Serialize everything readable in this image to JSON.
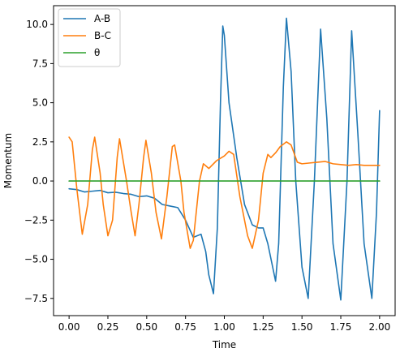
{
  "chart_data": {
    "type": "line",
    "title": "",
    "xlabel": "Time",
    "ylabel": "Momentum",
    "xlim": [
      -0.1,
      2.1
    ],
    "ylim": [
      -8.6,
      11.2
    ],
    "xticks": [
      0.0,
      0.25,
      0.5,
      0.75,
      1.0,
      1.25,
      1.5,
      1.75,
      2.0
    ],
    "xtick_labels": [
      "0.00",
      "0.25",
      "0.50",
      "0.75",
      "1.00",
      "1.25",
      "1.50",
      "1.75",
      "2.00"
    ],
    "yticks": [
      -7.5,
      -5.0,
      -2.5,
      0.0,
      2.5,
      5.0,
      7.5,
      10.0
    ],
    "ytick_labels": [
      "−7.5",
      "−5.0",
      "−2.5",
      "0.0",
      "2.5",
      "5.0",
      "7.5",
      "10.0"
    ],
    "grid": false,
    "legend_position": "top-left",
    "series": [
      {
        "name": "A-B",
        "color": "#1f77b4",
        "points": [
          [
            0.0,
            -0.5
          ],
          [
            0.05,
            -0.55
          ],
          [
            0.1,
            -0.7
          ],
          [
            0.15,
            -0.65
          ],
          [
            0.2,
            -0.6
          ],
          [
            0.25,
            -0.75
          ],
          [
            0.3,
            -0.72
          ],
          [
            0.35,
            -0.8
          ],
          [
            0.4,
            -0.85
          ],
          [
            0.45,
            -1.0
          ],
          [
            0.5,
            -0.95
          ],
          [
            0.55,
            -1.1
          ],
          [
            0.6,
            -1.5
          ],
          [
            0.65,
            -1.6
          ],
          [
            0.7,
            -1.7
          ],
          [
            0.75,
            -2.5
          ],
          [
            0.8,
            -3.6
          ],
          [
            0.85,
            -3.4
          ],
          [
            0.88,
            -4.5
          ],
          [
            0.9,
            -6.0
          ],
          [
            0.93,
            -7.2
          ],
          [
            0.955,
            -3.0
          ],
          [
            0.975,
            5.0
          ],
          [
            0.99,
            9.9
          ],
          [
            1.0,
            9.3
          ],
          [
            1.03,
            5.0
          ],
          [
            1.08,
            1.5
          ],
          [
            1.13,
            -1.5
          ],
          [
            1.18,
            -2.8
          ],
          [
            1.22,
            -3.0
          ],
          [
            1.25,
            -3.0
          ],
          [
            1.28,
            -4.0
          ],
          [
            1.33,
            -6.4
          ],
          [
            1.35,
            -4.0
          ],
          [
            1.38,
            6.0
          ],
          [
            1.4,
            10.4
          ],
          [
            1.43,
            7.0
          ],
          [
            1.46,
            0.0
          ],
          [
            1.5,
            -5.5
          ],
          [
            1.54,
            -7.5
          ],
          [
            1.58,
            0.0
          ],
          [
            1.62,
            9.7
          ],
          [
            1.66,
            4.0
          ],
          [
            1.7,
            -4.0
          ],
          [
            1.75,
            -7.6
          ],
          [
            1.79,
            0.0
          ],
          [
            1.82,
            9.6
          ],
          [
            1.86,
            3.0
          ],
          [
            1.9,
            -4.0
          ],
          [
            1.95,
            -7.5
          ],
          [
            1.98,
            -2.0
          ],
          [
            2.0,
            4.5
          ]
        ]
      },
      {
        "name": "B-C",
        "color": "#ff7f0e",
        "points": [
          [
            0.0,
            2.8
          ],
          [
            0.02,
            2.5
          ],
          [
            0.05,
            -0.5
          ],
          [
            0.085,
            -3.4
          ],
          [
            0.12,
            -1.5
          ],
          [
            0.15,
            2.0
          ],
          [
            0.165,
            2.8
          ],
          [
            0.2,
            0.5
          ],
          [
            0.22,
            -1.5
          ],
          [
            0.25,
            -3.5
          ],
          [
            0.28,
            -2.5
          ],
          [
            0.31,
            1.5
          ],
          [
            0.325,
            2.7
          ],
          [
            0.37,
            0.0
          ],
          [
            0.4,
            -2.0
          ],
          [
            0.425,
            -3.5
          ],
          [
            0.45,
            -1.5
          ],
          [
            0.48,
            1.5
          ],
          [
            0.495,
            2.6
          ],
          [
            0.53,
            0.5
          ],
          [
            0.56,
            -2.0
          ],
          [
            0.595,
            -3.7
          ],
          [
            0.63,
            -1.0
          ],
          [
            0.665,
            2.2
          ],
          [
            0.68,
            2.3
          ],
          [
            0.72,
            0.0
          ],
          [
            0.74,
            -2.0
          ],
          [
            0.78,
            -4.3
          ],
          [
            0.8,
            -3.8
          ],
          [
            0.84,
            0.0
          ],
          [
            0.865,
            1.1
          ],
          [
            0.9,
            0.8
          ],
          [
            0.95,
            1.3
          ],
          [
            1.0,
            1.6
          ],
          [
            1.03,
            1.9
          ],
          [
            1.06,
            1.7
          ],
          [
            1.1,
            -1.0
          ],
          [
            1.15,
            -3.5
          ],
          [
            1.18,
            -4.3
          ],
          [
            1.22,
            -2.5
          ],
          [
            1.25,
            0.5
          ],
          [
            1.28,
            1.7
          ],
          [
            1.3,
            1.5
          ],
          [
            1.33,
            1.8
          ],
          [
            1.36,
            2.2
          ],
          [
            1.4,
            2.5
          ],
          [
            1.43,
            2.3
          ],
          [
            1.47,
            1.2
          ],
          [
            1.5,
            1.1
          ],
          [
            1.55,
            1.15
          ],
          [
            1.6,
            1.2
          ],
          [
            1.65,
            1.25
          ],
          [
            1.7,
            1.1
          ],
          [
            1.75,
            1.05
          ],
          [
            1.8,
            1.0
          ],
          [
            1.85,
            1.05
          ],
          [
            1.9,
            1.0
          ],
          [
            1.95,
            1.0
          ],
          [
            2.0,
            1.0
          ]
        ]
      },
      {
        "name": "θ",
        "color": "#2ca02c",
        "points": [
          [
            0.0,
            0.0
          ],
          [
            2.0,
            0.0
          ]
        ]
      }
    ]
  }
}
